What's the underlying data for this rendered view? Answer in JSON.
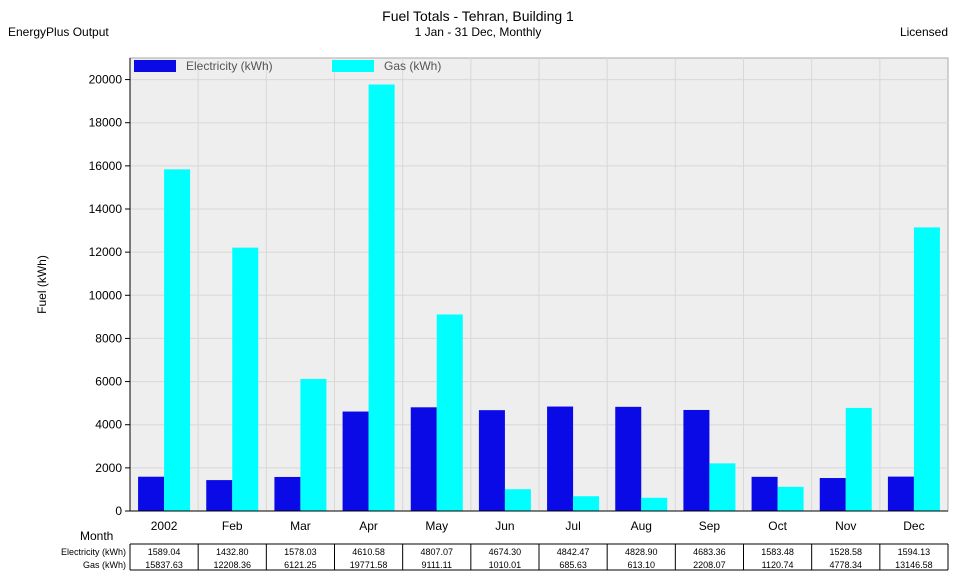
{
  "header": {
    "title": "Fuel Totals - Tehran, Building 1",
    "subtitle": "1 Jan - 31 Dec, Monthly",
    "left_note": "EnergyPlus Output",
    "right_note": "Licensed"
  },
  "colors": {
    "electricity": "#0a0ae6",
    "gas": "#00ffff",
    "plot_bg": "#eeeeee",
    "grid": "#d8d8d8"
  },
  "chart_data": {
    "type": "bar",
    "title": "Fuel Totals - Tehran, Building 1",
    "subtitle": "1 Jan - 31 Dec, Monthly",
    "xlabel": "Month",
    "ylabel": "Fuel (kWh)",
    "ylim": [
      0,
      21000
    ],
    "yticks": [
      0,
      2000,
      4000,
      6000,
      8000,
      10000,
      12000,
      14000,
      16000,
      18000,
      20000
    ],
    "grid": true,
    "legend_position": "top-left",
    "categories": [
      "2002",
      "Feb",
      "Mar",
      "Apr",
      "May",
      "Jun",
      "Jul",
      "Aug",
      "Sep",
      "Oct",
      "Nov",
      "Dec"
    ],
    "series": [
      {
        "name": "Electricity (kWh)",
        "values": [
          1589.04,
          1432.8,
          1578.03,
          4610.58,
          4807.07,
          4674.3,
          4842.47,
          4828.9,
          4683.36,
          1583.48,
          1528.58,
          1594.13
        ]
      },
      {
        "name": "Gas (kWh)",
        "values": [
          15837.63,
          12208.36,
          6121.25,
          19771.58,
          9111.11,
          1010.01,
          685.63,
          613.1,
          2208.07,
          1120.74,
          4778.34,
          13146.58
        ]
      }
    ],
    "table": {
      "row_labels": [
        "Electricity (kWh)",
        "Gas (kWh)"
      ],
      "rows": [
        [
          "1589.04",
          "1432.80",
          "1578.03",
          "4610.58",
          "4807.07",
          "4674.30",
          "4842.47",
          "4828.90",
          "4683.36",
          "1583.48",
          "1528.58",
          "1594.13"
        ],
        [
          "15837.63",
          "12208.36",
          "6121.25",
          "19771.58",
          "9111.11",
          "1010.01",
          "685.63",
          "613.10",
          "2208.07",
          "1120.74",
          "4778.34",
          "13146.58"
        ]
      ]
    }
  }
}
